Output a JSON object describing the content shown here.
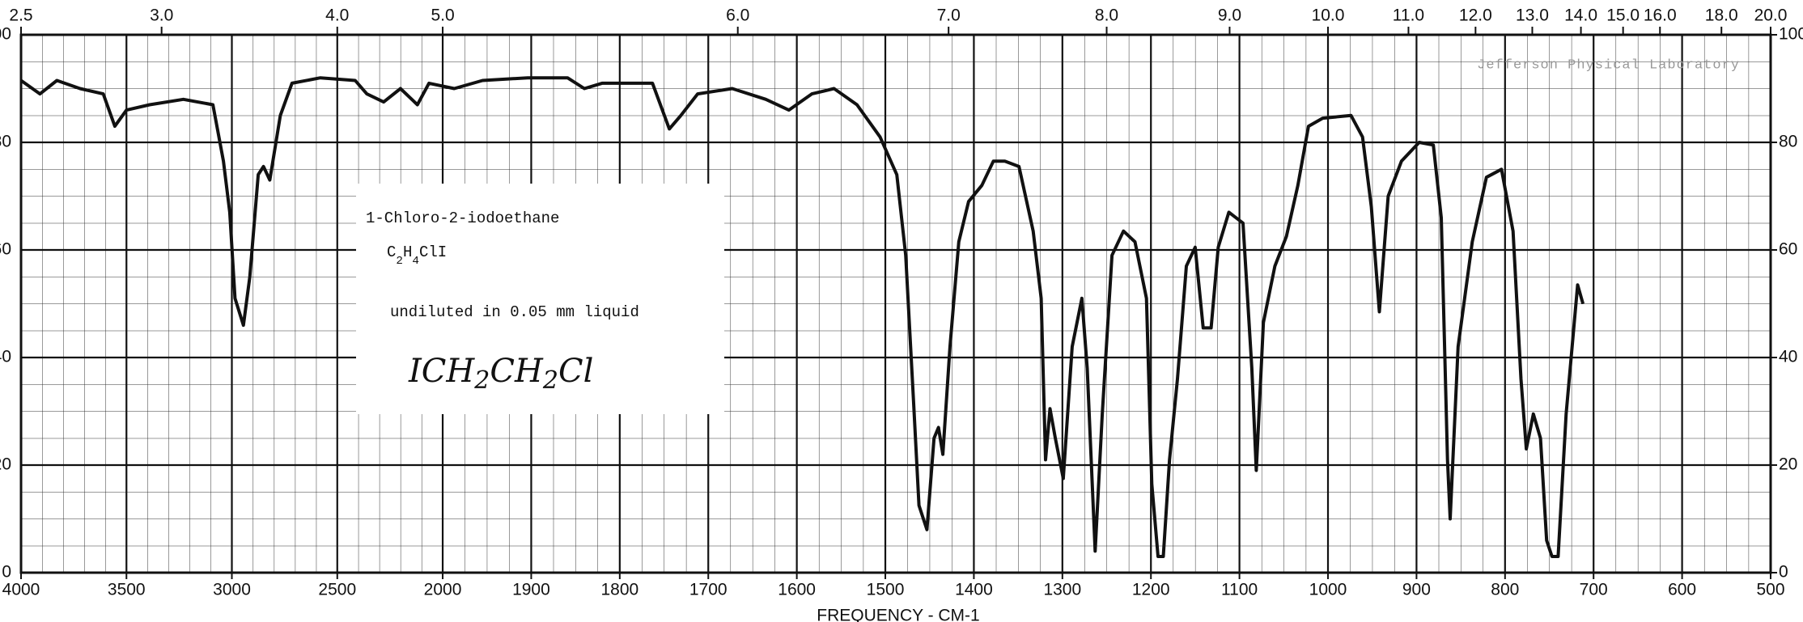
{
  "chart_data": {
    "type": "line",
    "title": "1-Chloro-2-iodoethane",
    "formula": [
      "C",
      "2",
      "H",
      "4",
      "ClI"
    ],
    "subtitle": "undiluted in 0.05 mm  liquid",
    "structure": [
      "ICH",
      "2",
      "CH",
      "2",
      "Cl"
    ],
    "source": "Jefferson Physical Laboratory",
    "x_label": "FREQUENCY - CM-1",
    "color": "#111111",
    "grid": true,
    "xlim": [
      4000,
      500
    ],
    "xticks": [
      4000,
      3500,
      3000,
      2500,
      2000,
      1900,
      1800,
      1700,
      1600,
      1500,
      1400,
      1300,
      1200,
      1100,
      1000,
      900,
      800,
      700,
      600,
      500
    ],
    "x2ticks": [
      2.5,
      {
        "value": 3,
        "label": "3.0"
      },
      {
        "value": 4,
        "label": "4.0"
      },
      {
        "value": 5,
        "label": "5.0"
      },
      {
        "value": 6,
        "label": "6.0"
      },
      {
        "value": 7,
        "label": "7.0"
      },
      {
        "value": 8,
        "label": "8.0"
      },
      {
        "value": 9,
        "label": "9.0"
      },
      {
        "value": 10,
        "label": "10.0"
      },
      {
        "value": 11,
        "label": "11.0"
      },
      {
        "value": 12,
        "label": "12.0"
      },
      {
        "value": 13,
        "label": "13.0"
      },
      {
        "value": 14,
        "label": "14.0"
      },
      {
        "value": 15,
        "label": "15.0"
      },
      {
        "value": 16,
        "label": "16.0"
      },
      {
        "value": 18,
        "label": "18.0"
      },
      {
        "value": 20,
        "label": "20.0"
      }
    ],
    "ylim": [
      0,
      100
    ],
    "yticks": [
      0,
      20,
      40,
      60,
      80,
      100
    ],
    "x": [
      4000,
      3910,
      3830,
      3720,
      3610,
      3555,
      3500,
      3390,
      3230,
      3090,
      3040,
      3010,
      2985,
      2945,
      2915,
      2875,
      2850,
      2820,
      2770,
      2715,
      2580,
      2415,
      2360,
      2280,
      2200,
      2120,
      2065,
      1987,
      1955,
      1904,
      1859,
      1840,
      1820,
      1763,
      1744,
      1731,
      1712,
      1673,
      1635,
      1609,
      1583,
      1558,
      1532,
      1506,
      1487,
      1477,
      1468,
      1462,
      1453,
      1445,
      1440,
      1435,
      1427,
      1417,
      1406,
      1391,
      1378,
      1365,
      1349,
      1333,
      1324,
      1319,
      1314,
      1308,
      1299,
      1289,
      1278,
      1272,
      1263,
      1255,
      1244,
      1231,
      1218,
      1205,
      1199,
      1192,
      1186,
      1179,
      1170,
      1160,
      1150,
      1141,
      1132,
      1124,
      1112,
      1096,
      1086,
      1081,
      1073,
      1060,
      1047,
      1034,
      1022,
      1006,
      974,
      961,
      951,
      942,
      932,
      917,
      897,
      881,
      872,
      865,
      862,
      853,
      837,
      821,
      804,
      791,
      782,
      776,
      768,
      760,
      753,
      747,
      740,
      731,
      718,
      712
    ],
    "values": [
      91.5,
      89,
      91.5,
      90,
      89,
      83,
      86,
      87,
      88,
      87,
      76.5,
      67,
      51,
      46,
      55,
      74,
      75.5,
      73,
      85,
      91,
      92,
      91.5,
      89,
      87.5,
      90,
      87,
      91,
      90,
      91.5,
      92,
      92,
      90,
      91,
      91,
      82.5,
      85,
      89,
      90,
      88,
      86,
      89,
      90,
      87,
      81,
      74,
      59,
      31.5,
      12.5,
      8,
      25,
      27,
      22,
      42,
      61.5,
      69,
      72,
      76.5,
      76.5,
      75.5,
      63.5,
      51,
      21,
      30.5,
      25,
      17.5,
      42,
      51,
      38,
      4,
      29.5,
      59,
      63.5,
      61.5,
      51,
      16.5,
      3,
      3,
      21,
      36,
      57,
      60.5,
      45.5,
      45.5,
      60.5,
      67,
      65,
      38,
      19,
      46.5,
      57,
      62.5,
      72,
      83,
      84.5,
      85,
      81,
      68,
      48.5,
      70,
      76.5,
      80,
      79.5,
      66,
      21,
      10,
      42,
      61.5,
      73.5,
      75,
      63.5,
      36,
      23,
      29.5,
      25,
      6,
      3,
      3,
      29.5,
      53.5,
      50
    ]
  }
}
